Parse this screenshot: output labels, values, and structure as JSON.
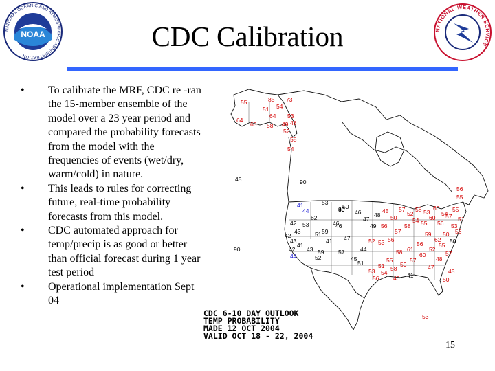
{
  "slide": {
    "title": "CDC Calibration",
    "page_number": "15"
  },
  "bullets": [
    {
      "text": "To calibrate the MRF, CDC re -ran the 15-member ensemble of the model over a 23 year period and compared the probability forecasts from the model with the frequencies of events (wet/dry, warm/cold) in nature."
    },
    {
      "text": "This leads to rules for correcting future, real-time probability forecasts from this model."
    },
    {
      "text": "CDC automated approach for temp/precip is as good or better than official forecast during 1 year test period"
    },
    {
      "text": "Operational implementation Sept 04"
    }
  ],
  "logos": {
    "left_text": "NATIONAL OCEANIC AND ATMOSPHERIC ADMINISTRATION",
    "left_center": "NOAA",
    "right_text": "NATIONAL WEATHER SERVICE"
  },
  "map": {
    "caption_lines": [
      "CDC 6-10 DAY OUTLOOK",
      "TEMP PROBABILITY",
      "MADE  12 OCT 2004",
      "VALID  OCT 18 - 22, 2004"
    ],
    "colors": {
      "above": "#d40000",
      "below": "#1a1ad4",
      "land": "#000000"
    },
    "labels": [
      {
        "t": "55",
        "c": "above"
      },
      {
        "t": "85",
        "c": "above"
      },
      {
        "t": "73",
        "c": "above"
      },
      {
        "t": "51",
        "c": "above"
      },
      {
        "t": "64",
        "c": "above"
      },
      {
        "t": "54",
        "c": "above"
      },
      {
        "t": "53",
        "c": "above"
      },
      {
        "t": "64",
        "c": "above"
      },
      {
        "t": "58",
        "c": "above"
      },
      {
        "t": "49",
        "c": "above"
      },
      {
        "t": "48",
        "c": "above"
      },
      {
        "t": "63",
        "c": "above"
      },
      {
        "t": "52",
        "c": "above"
      },
      {
        "t": "58",
        "c": "above"
      },
      {
        "t": "54",
        "c": "above"
      },
      {
        "t": "45",
        "c": "land"
      },
      {
        "t": "90",
        "c": "land"
      },
      {
        "t": "56",
        "c": "above"
      },
      {
        "t": "90",
        "c": "land"
      },
      {
        "t": "53",
        "c": "land"
      },
      {
        "t": "55",
        "c": "above"
      },
      {
        "t": "41",
        "c": "below"
      },
      {
        "t": "44",
        "c": "below"
      },
      {
        "t": "50",
        "c": "land"
      },
      {
        "t": "62",
        "c": "land"
      },
      {
        "t": "42",
        "c": "land"
      },
      {
        "t": "46",
        "c": "land"
      },
      {
        "t": "43",
        "c": "land"
      },
      {
        "t": "42",
        "c": "land"
      },
      {
        "t": "53",
        "c": "land"
      },
      {
        "t": "59",
        "c": "land"
      },
      {
        "t": "51",
        "c": "land"
      },
      {
        "t": "46",
        "c": "land"
      },
      {
        "t": "43",
        "c": "land"
      },
      {
        "t": "41",
        "c": "land"
      },
      {
        "t": "42",
        "c": "land"
      },
      {
        "t": "43",
        "c": "land"
      },
      {
        "t": "44",
        "c": "below"
      },
      {
        "t": "41",
        "c": "land"
      },
      {
        "t": "47",
        "c": "land"
      },
      {
        "t": "59",
        "c": "land"
      },
      {
        "t": "52",
        "c": "land"
      },
      {
        "t": "57",
        "c": "land"
      },
      {
        "t": "45",
        "c": "land"
      },
      {
        "t": "44",
        "c": "land"
      },
      {
        "t": "51",
        "c": "land"
      },
      {
        "t": "52",
        "c": "above"
      },
      {
        "t": "53",
        "c": "above"
      },
      {
        "t": "56",
        "c": "above"
      },
      {
        "t": "57",
        "c": "above"
      },
      {
        "t": "58",
        "c": "above"
      },
      {
        "t": "54",
        "c": "above"
      },
      {
        "t": "55",
        "c": "above"
      },
      {
        "t": "60",
        "c": "above"
      },
      {
        "t": "56",
        "c": "above"
      },
      {
        "t": "57",
        "c": "above"
      },
      {
        "t": "53",
        "c": "above"
      },
      {
        "t": "50",
        "c": "above"
      },
      {
        "t": "62",
        "c": "above"
      },
      {
        "t": "59",
        "c": "above"
      },
      {
        "t": "56",
        "c": "above"
      },
      {
        "t": "61",
        "c": "above"
      },
      {
        "t": "58",
        "c": "above"
      },
      {
        "t": "55",
        "c": "above"
      },
      {
        "t": "51",
        "c": "above"
      },
      {
        "t": "53",
        "c": "above"
      },
      {
        "t": "56",
        "c": "above"
      },
      {
        "t": "54",
        "c": "above"
      },
      {
        "t": "58",
        "c": "above"
      },
      {
        "t": "59",
        "c": "above"
      },
      {
        "t": "57",
        "c": "above"
      },
      {
        "t": "60",
        "c": "above"
      },
      {
        "t": "52",
        "c": "above"
      },
      {
        "t": "55",
        "c": "above"
      },
      {
        "t": "50",
        "c": "land"
      },
      {
        "t": "57",
        "c": "above"
      },
      {
        "t": "46",
        "c": "land"
      },
      {
        "t": "47",
        "c": "land"
      },
      {
        "t": "48",
        "c": "land"
      },
      {
        "t": "45",
        "c": "above"
      },
      {
        "t": "50",
        "c": "above"
      },
      {
        "t": "49",
        "c": "land"
      },
      {
        "t": "56",
        "c": "above"
      },
      {
        "t": "57",
        "c": "above"
      },
      {
        "t": "52",
        "c": "above"
      },
      {
        "t": "58",
        "c": "above"
      },
      {
        "t": "53",
        "c": "above"
      },
      {
        "t": "60",
        "c": "above"
      },
      {
        "t": "54",
        "c": "above"
      },
      {
        "t": "55",
        "c": "above"
      },
      {
        "t": "51",
        "c": "above"
      },
      {
        "t": "56",
        "c": "above"
      },
      {
        "t": "48",
        "c": "above"
      },
      {
        "t": "47",
        "c": "above"
      },
      {
        "t": "45",
        "c": "above"
      },
      {
        "t": "50",
        "c": "above"
      },
      {
        "t": "41",
        "c": "land"
      },
      {
        "t": "40",
        "c": "above"
      },
      {
        "t": "53",
        "c": "above"
      },
      {
        "t": "49",
        "c": "land"
      },
      {
        "t": "90",
        "c": "land"
      }
    ]
  }
}
